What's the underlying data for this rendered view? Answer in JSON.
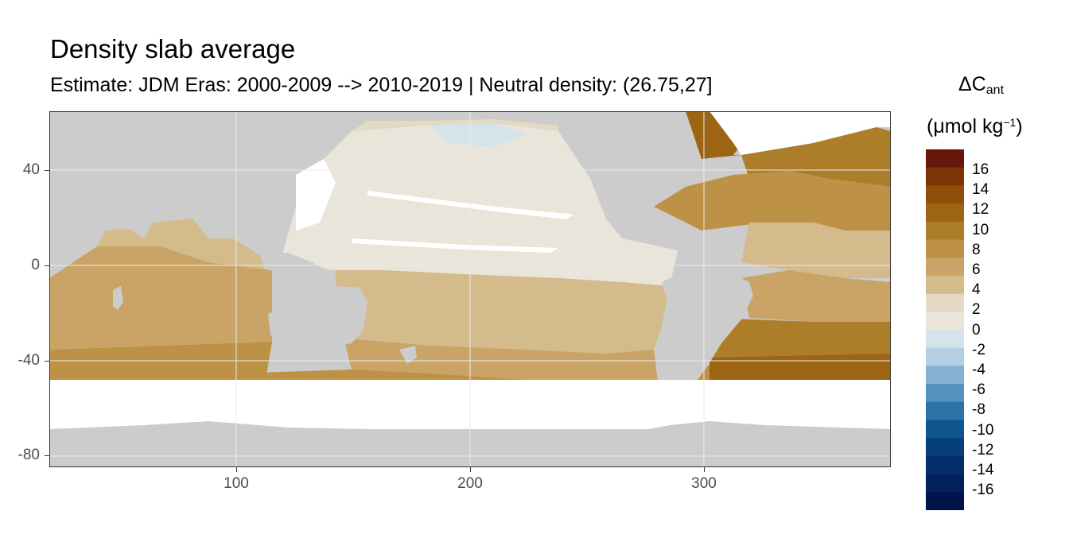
{
  "title": "Density slab average",
  "subtitle": "Estimate: JDM Eras: 2000-2009 --> 2010-2019 | Neutral density: (26.75,27]",
  "legend": {
    "title_main": "ΔC",
    "title_sub": "ant",
    "unit_pre": "(μmol kg",
    "unit_sup": "−1",
    "unit_post": ")",
    "labels": [
      "16",
      "14",
      "12",
      "10",
      "8",
      "6",
      "4",
      "2",
      "0",
      "-2",
      "-4",
      "-6",
      "-8",
      "-10",
      "-12",
      "-14",
      "-16"
    ],
    "colors": [
      "#67160b",
      "#7d3508",
      "#8f4d0a",
      "#9d6414",
      "#ad7e2a",
      "#bd9247",
      "#c9a466",
      "#d4bb8c",
      "#e3d9c4",
      "#eae5da",
      "#d5e3ea",
      "#b4cfe1",
      "#86b1d2",
      "#5491bd",
      "#2c72a6",
      "#0d5690",
      "#063f7c",
      "#042e6a",
      "#02215a",
      "#011449"
    ]
  },
  "axes": {
    "x_ticks": [
      "100",
      "200",
      "300"
    ],
    "y_ticks": [
      "40",
      "0",
      "-40",
      "-80"
    ],
    "x_range": [
      20,
      380
    ],
    "y_range": [
      -85,
      65
    ]
  },
  "map": {
    "land_color": "#cccccc",
    "nodata_color": "#ffffff",
    "grid_color": "#ebebeb"
  }
}
